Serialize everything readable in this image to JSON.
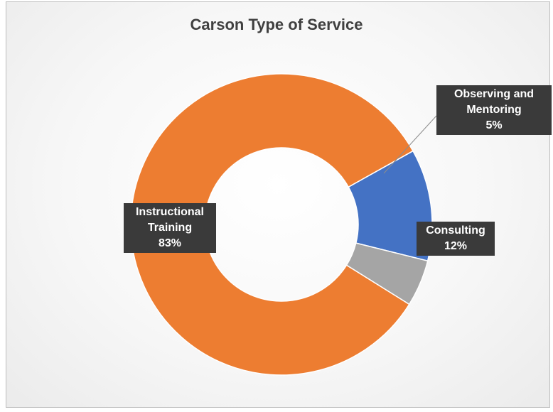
{
  "chart_data": {
    "type": "pie",
    "variant": "donut",
    "title": "Carson Type of Service",
    "categories": [
      "Instructional Training",
      "Consulting",
      "Observing and Mentoring"
    ],
    "values": [
      83,
      12,
      5
    ],
    "colors": [
      "#ED7D31",
      "#4472C4",
      "#A5A5A5"
    ],
    "labels": [
      {
        "lines": [
          "Instructional",
          "Training"
        ],
        "percent": "83%"
      },
      {
        "lines": [
          "Consulting"
        ],
        "percent": "12%"
      },
      {
        "lines": [
          "Observing and",
          "Mentoring"
        ],
        "percent": "5%"
      }
    ],
    "legend": "none"
  }
}
